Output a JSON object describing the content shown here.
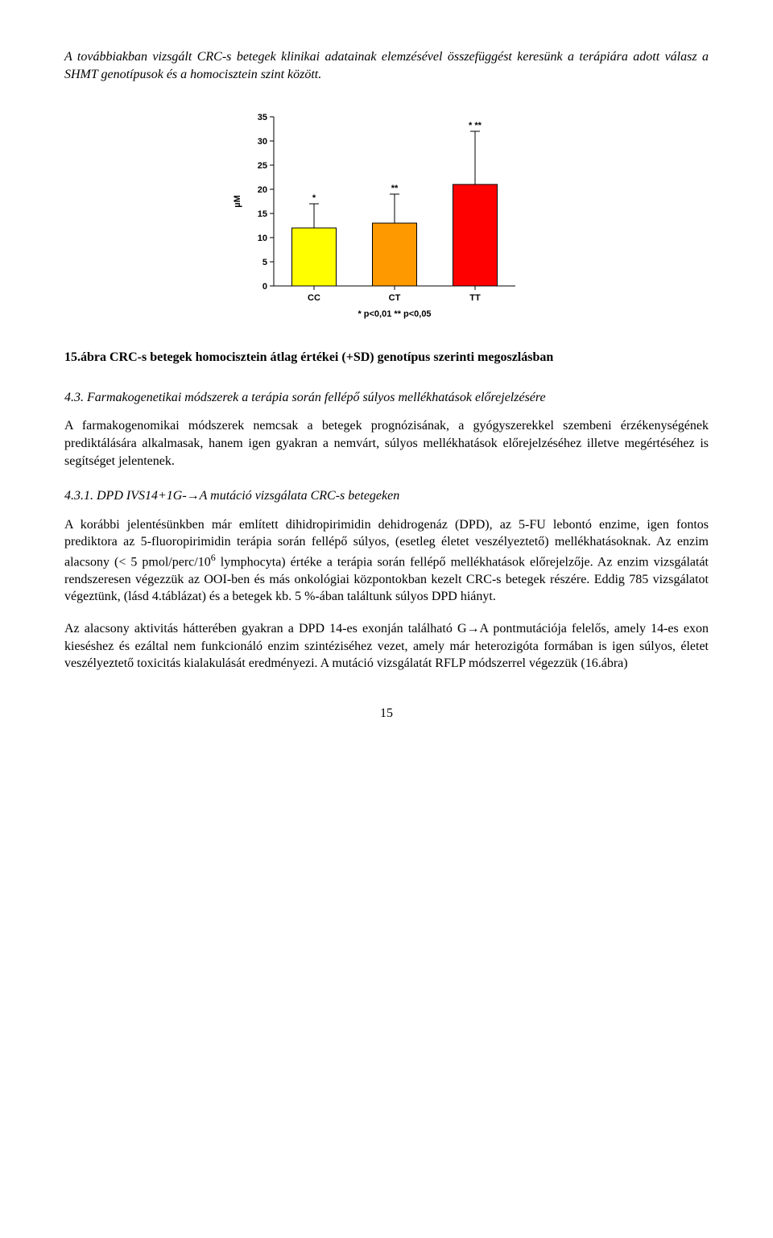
{
  "intro": "A továbbiakban vizsgált CRC-s betegek klinikai adatainak elemzésével összefüggést keresünk a terápiára adott válasz a SHMT genotípusok és a homocisztein szint között.",
  "chart": {
    "type": "bar",
    "categories": [
      "CC",
      "CT",
      "TT"
    ],
    "values": [
      12,
      13,
      21
    ],
    "sd_values": [
      17,
      19,
      32
    ],
    "sig_marks": [
      "*",
      "**",
      "*  **"
    ],
    "bar_colors": [
      "#ffff00",
      "#ff9900",
      "#ff0000"
    ],
    "ylabel": "µM",
    "ylim": [
      0,
      35
    ],
    "ytick_step": 5,
    "font_size_axis": 11,
    "font_size_ylabel": 11,
    "bar_outline": "#000000",
    "axis_color": "#000000",
    "tick_color": "#000000",
    "background": "#ffffff",
    "bar_width": 0.55,
    "caption_line": "* p<0,01   ** p<0,05"
  },
  "fig_caption": "15.ábra CRC-s betegek homocisztein átlag értékei (+SD) genotípus szerinti megoszlásban",
  "section43_title": "4.3. Farmakogenetikai módszerek a terápia során fellépő súlyos mellékhatások előrejelzésére",
  "section43_body": "A farmakogenomikai módszerek nemcsak a betegek prognózisának, a gyógyszerekkel szembeni érzékenységének prediktálására alkalmasak, hanem igen gyakran a nemvárt, súlyos mellékhatások előrejelzéséhez illetve megértéséhez is segítséget jelentenek.",
  "section431_title_prefix": "4.3.1. DPD IVS14+1G-",
  "section431_title_suffix": "A mutáció vizsgálata CRC-s betegeken",
  "section431_p1_a": "A korábbi jelentésünkben már említett dihidropirimidin dehidrogenáz (DPD), az 5-FU lebontó enzime, igen fontos prediktora az 5-fluoropirimidin terápia során fellépő súlyos, (esetleg életet veszélyeztető) mellékhatásoknak. Az enzim alacsony (< 5 pmol/perc/10",
  "section431_p1_sup": "6",
  "section431_p1_b": " lymphocyta) értéke a terápia során fellépő mellékhatások előrejelzője. Az enzim vizsgálatát rendszeresen végezzük az OOI-ben és más onkológiai központokban kezelt CRC-s betegek részére. Eddig 785 vizsgálatot végeztünk, (lásd 4.táblázat) és a betegek kb. 5 %-ában találtunk súlyos DPD hiányt.",
  "section431_p2_a": "Az alacsony aktivitás hátterében gyakran a DPD 14-es exonján található G",
  "section431_p2_b": "A pontmutációja felelős, amely 14-es exon kieséshez és ezáltal nem funkcionáló enzim szintéziséhez vezet, amely már heterozigóta formában is igen súlyos, életet veszélyeztető toxicitás kialakulását eredményezi. A mutáció vizsgálatát RFLP módszerrel végezzük (16.ábra)",
  "page_number": "15"
}
